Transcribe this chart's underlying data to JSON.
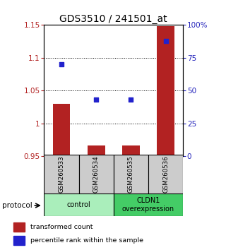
{
  "title": "GDS3510 / 241501_at",
  "samples": [
    "GSM260533",
    "GSM260534",
    "GSM260535",
    "GSM260536"
  ],
  "bar_values": [
    1.03,
    0.966,
    0.966,
    1.148
  ],
  "scatter_values": [
    70,
    43,
    43,
    88
  ],
  "ylim_left": [
    0.95,
    1.15
  ],
  "ylim_right": [
    0,
    100
  ],
  "yticks_left": [
    0.95,
    1.0,
    1.05,
    1.1,
    1.15
  ],
  "ytick_labels_left": [
    "0.95",
    "1",
    "1.05",
    "1.1",
    "1.15"
  ],
  "yticks_right": [
    0,
    25,
    50,
    75,
    100
  ],
  "ytick_labels_right": [
    "0",
    "25",
    "50",
    "75",
    "100%"
  ],
  "bar_color": "#b22222",
  "scatter_color": "#2222cc",
  "bar_width": 0.5,
  "groups": [
    {
      "label": "control",
      "samples": [
        0,
        1
      ],
      "color": "#aaeebb"
    },
    {
      "label": "CLDN1\noverexpression",
      "samples": [
        2,
        3
      ],
      "color": "#44cc66"
    }
  ],
  "protocol_label": "protocol",
  "legend_bar_label": "transformed count",
  "legend_scatter_label": "percentile rank within the sample",
  "grid_color": "#000000",
  "box_color": "#cccccc",
  "title_fontsize": 10,
  "tick_fontsize": 7.5
}
